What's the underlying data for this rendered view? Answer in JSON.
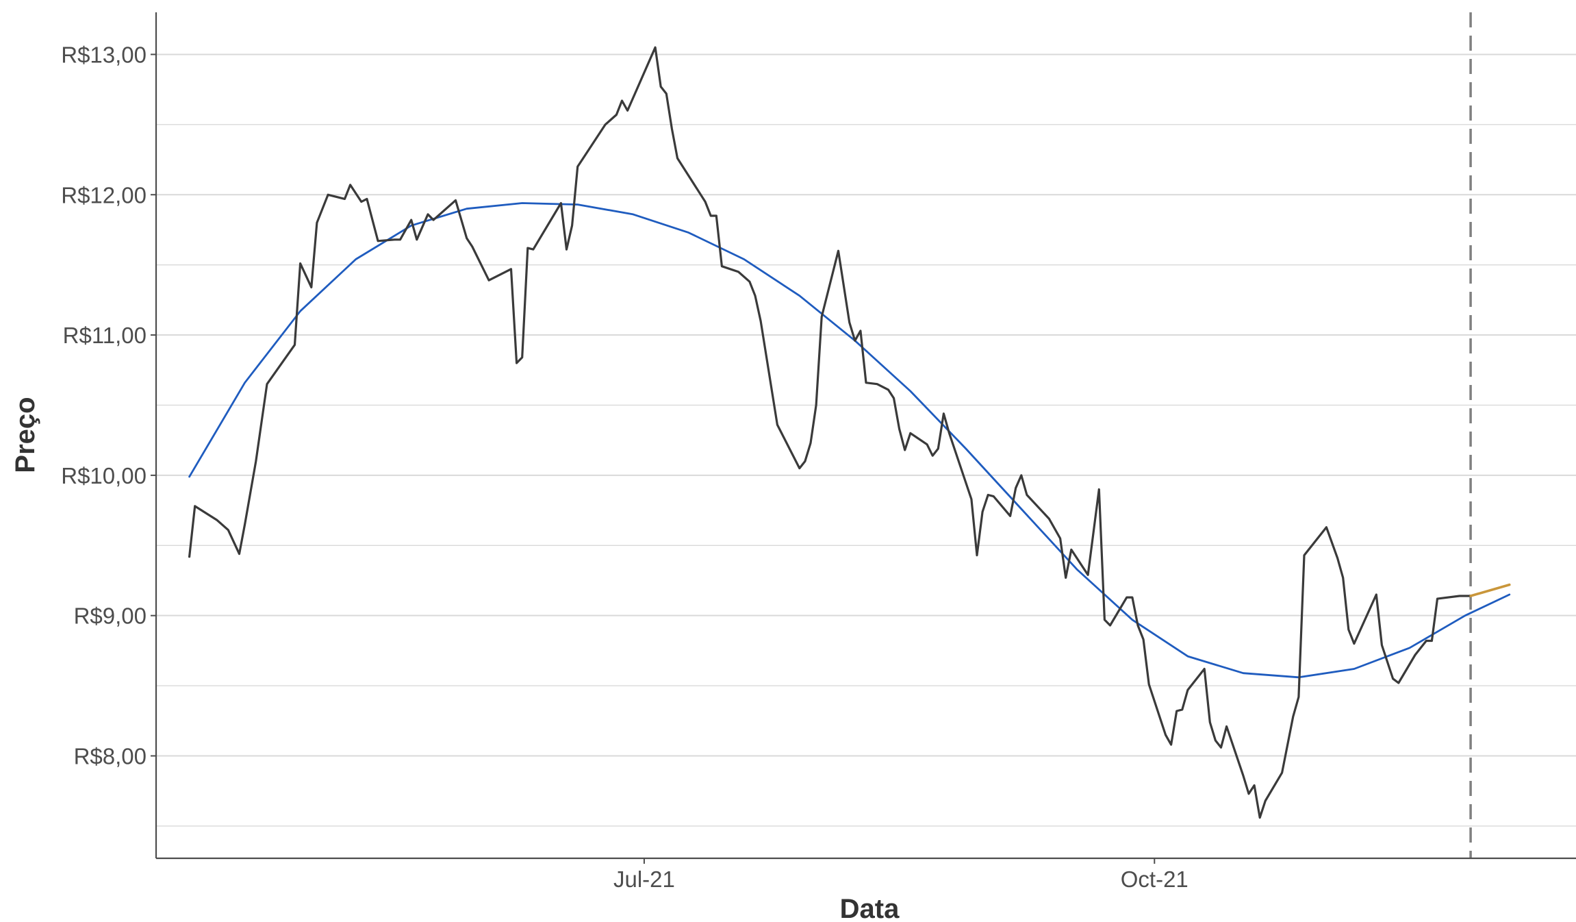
{
  "chart_data": {
    "type": "line",
    "title": "",
    "xlabel": "Data",
    "ylabel": "Preço",
    "y_tick_labels": [
      "R$8,00",
      "R$9,00",
      "R$10,00",
      "R$11,00",
      "R$12,00",
      "R$13,00"
    ],
    "y_ticks": [
      8,
      9,
      10,
      11,
      12,
      13
    ],
    "x_tick_labels": [
      "Jul-21",
      "Oct-21"
    ],
    "x_ticks": [
      "2021-07-01",
      "2021-10-01"
    ],
    "xlim": [
      "2021-04-04",
      "2021-12-16"
    ],
    "ylim": [
      7.27,
      13.3
    ],
    "grid": "horizontal",
    "legend": "none",
    "vline": {
      "x": "2021-11-27",
      "style": "dashed",
      "color": "#808080"
    },
    "colors": {
      "price": "#3a3a3a",
      "trend": "#1f5cbf",
      "forecast": "#c9963a",
      "grid": "#d9d9d9",
      "axis": "#4d4d4d"
    },
    "series": [
      {
        "role": "price",
        "points": [
          [
            "2021-04-10",
            9.42
          ],
          [
            "2021-04-11",
            9.78
          ],
          [
            "2021-04-15",
            9.68
          ],
          [
            "2021-04-17",
            9.61
          ],
          [
            "2021-04-19",
            9.44
          ],
          [
            "2021-04-20",
            9.65
          ],
          [
            "2021-04-22",
            10.1
          ],
          [
            "2021-04-24",
            10.65
          ],
          [
            "2021-04-29",
            10.93
          ],
          [
            "2021-04-30",
            11.51
          ],
          [
            "2021-05-02",
            11.34
          ],
          [
            "2021-05-03",
            11.8
          ],
          [
            "2021-05-05",
            12.0
          ],
          [
            "2021-05-08",
            11.97
          ],
          [
            "2021-05-09",
            12.07
          ],
          [
            "2021-05-11",
            11.95
          ],
          [
            "2021-05-12",
            11.97
          ],
          [
            "2021-05-14",
            11.67
          ],
          [
            "2021-05-17",
            11.68
          ],
          [
            "2021-05-18",
            11.68
          ],
          [
            "2021-05-20",
            11.82
          ],
          [
            "2021-05-21",
            11.68
          ],
          [
            "2021-05-23",
            11.86
          ],
          [
            "2021-05-24",
            11.82
          ],
          [
            "2021-05-28",
            11.96
          ],
          [
            "2021-05-30",
            11.69
          ],
          [
            "2021-05-31",
            11.63
          ],
          [
            "2021-06-03",
            11.39
          ],
          [
            "2021-06-07",
            11.47
          ],
          [
            "2021-06-08",
            10.8
          ],
          [
            "2021-06-09",
            10.84
          ],
          [
            "2021-06-10",
            11.62
          ],
          [
            "2021-06-11",
            11.61
          ],
          [
            "2021-06-16",
            11.94
          ],
          [
            "2021-06-17",
            11.61
          ],
          [
            "2021-06-18",
            11.78
          ],
          [
            "2021-06-19",
            12.2
          ],
          [
            "2021-06-20",
            12.26
          ],
          [
            "2021-06-24",
            12.5
          ],
          [
            "2021-06-26",
            12.57
          ],
          [
            "2021-06-27",
            12.67
          ],
          [
            "2021-06-28",
            12.6
          ],
          [
            "2021-07-03",
            13.05
          ],
          [
            "2021-07-04",
            12.77
          ],
          [
            "2021-07-05",
            12.72
          ],
          [
            "2021-07-06",
            12.47
          ],
          [
            "2021-07-07",
            12.26
          ],
          [
            "2021-07-12",
            11.95
          ],
          [
            "2021-07-13",
            11.85
          ],
          [
            "2021-07-14",
            11.85
          ],
          [
            "2021-07-15",
            11.49
          ],
          [
            "2021-07-18",
            11.45
          ],
          [
            "2021-07-20",
            11.38
          ],
          [
            "2021-07-21",
            11.28
          ],
          [
            "2021-07-22",
            11.1
          ],
          [
            "2021-07-25",
            10.36
          ],
          [
            "2021-07-29",
            10.05
          ],
          [
            "2021-07-30",
            10.1
          ],
          [
            "2021-07-31",
            10.23
          ],
          [
            "2021-08-01",
            10.5
          ],
          [
            "2021-08-02",
            11.13
          ],
          [
            "2021-08-05",
            11.6
          ],
          [
            "2021-08-07",
            11.09
          ],
          [
            "2021-08-08",
            10.96
          ],
          [
            "2021-08-09",
            11.03
          ],
          [
            "2021-08-10",
            10.66
          ],
          [
            "2021-08-12",
            10.65
          ],
          [
            "2021-08-14",
            10.61
          ],
          [
            "2021-08-15",
            10.55
          ],
          [
            "2021-08-16",
            10.33
          ],
          [
            "2021-08-17",
            10.18
          ],
          [
            "2021-08-18",
            10.3
          ],
          [
            "2021-08-21",
            10.22
          ],
          [
            "2021-08-22",
            10.14
          ],
          [
            "2021-08-23",
            10.19
          ],
          [
            "2021-08-24",
            10.44
          ],
          [
            "2021-08-25",
            10.3
          ],
          [
            "2021-08-29",
            9.83
          ],
          [
            "2021-08-30",
            9.43
          ],
          [
            "2021-08-31",
            9.74
          ],
          [
            "2021-09-01",
            9.86
          ],
          [
            "2021-09-02",
            9.85
          ],
          [
            "2021-09-05",
            9.71
          ],
          [
            "2021-09-06",
            9.91
          ],
          [
            "2021-09-07",
            10.0
          ],
          [
            "2021-09-08",
            9.86
          ],
          [
            "2021-09-12",
            9.69
          ],
          [
            "2021-09-14",
            9.55
          ],
          [
            "2021-09-15",
            9.27
          ],
          [
            "2021-09-16",
            9.47
          ],
          [
            "2021-09-19",
            9.29
          ],
          [
            "2021-09-21",
            9.9
          ],
          [
            "2021-09-22",
            8.97
          ],
          [
            "2021-09-23",
            8.93
          ],
          [
            "2021-09-26",
            9.13
          ],
          [
            "2021-09-27",
            9.13
          ],
          [
            "2021-09-28",
            8.93
          ],
          [
            "2021-09-29",
            8.83
          ],
          [
            "2021-09-30",
            8.51
          ],
          [
            "2021-10-03",
            8.15
          ],
          [
            "2021-10-04",
            8.08
          ],
          [
            "2021-10-05",
            8.32
          ],
          [
            "2021-10-06",
            8.33
          ],
          [
            "2021-10-07",
            8.47
          ],
          [
            "2021-10-10",
            8.62
          ],
          [
            "2021-10-11",
            8.24
          ],
          [
            "2021-10-12",
            8.11
          ],
          [
            "2021-10-13",
            8.06
          ],
          [
            "2021-10-14",
            8.21
          ],
          [
            "2021-10-17",
            7.86
          ],
          [
            "2021-10-18",
            7.73
          ],
          [
            "2021-10-19",
            7.79
          ],
          [
            "2021-10-20",
            7.56
          ],
          [
            "2021-10-21",
            7.68
          ],
          [
            "2021-10-24",
            7.88
          ],
          [
            "2021-10-26",
            8.28
          ],
          [
            "2021-10-27",
            8.42
          ],
          [
            "2021-10-28",
            9.43
          ],
          [
            "2021-11-01",
            9.63
          ],
          [
            "2021-11-03",
            9.41
          ],
          [
            "2021-11-04",
            9.27
          ],
          [
            "2021-11-05",
            8.9
          ],
          [
            "2021-11-06",
            8.8
          ],
          [
            "2021-11-10",
            9.15
          ],
          [
            "2021-11-11",
            8.79
          ],
          [
            "2021-11-13",
            8.55
          ],
          [
            "2021-11-14",
            8.52
          ],
          [
            "2021-11-17",
            8.72
          ],
          [
            "2021-11-19",
            8.82
          ],
          [
            "2021-11-20",
            8.82
          ],
          [
            "2021-11-21",
            9.12
          ],
          [
            "2021-11-25",
            9.14
          ],
          [
            "2021-11-27",
            9.14
          ]
        ]
      },
      {
        "role": "trend",
        "points": [
          [
            "2021-04-10",
            9.99
          ],
          [
            "2021-04-20",
            10.66
          ],
          [
            "2021-04-30",
            11.17
          ],
          [
            "2021-05-10",
            11.54
          ],
          [
            "2021-05-20",
            11.78
          ],
          [
            "2021-05-30",
            11.9
          ],
          [
            "2021-06-09",
            11.94
          ],
          [
            "2021-06-19",
            11.93
          ],
          [
            "2021-06-29",
            11.86
          ],
          [
            "2021-07-09",
            11.73
          ],
          [
            "2021-07-19",
            11.54
          ],
          [
            "2021-07-29",
            11.28
          ],
          [
            "2021-08-08",
            10.96
          ],
          [
            "2021-08-18",
            10.6
          ],
          [
            "2021-08-28",
            10.19
          ],
          [
            "2021-09-07",
            9.76
          ],
          [
            "2021-09-17",
            9.33
          ],
          [
            "2021-09-27",
            8.97
          ],
          [
            "2021-10-07",
            8.71
          ],
          [
            "2021-10-17",
            8.59
          ],
          [
            "2021-10-27",
            8.56
          ],
          [
            "2021-11-06",
            8.62
          ],
          [
            "2021-11-16",
            8.77
          ],
          [
            "2021-11-26",
            9.0
          ],
          [
            "2021-12-04",
            9.15
          ]
        ]
      },
      {
        "role": "forecast",
        "points": [
          [
            "2021-11-27",
            9.14
          ],
          [
            "2021-12-04",
            9.22
          ]
        ]
      }
    ]
  }
}
